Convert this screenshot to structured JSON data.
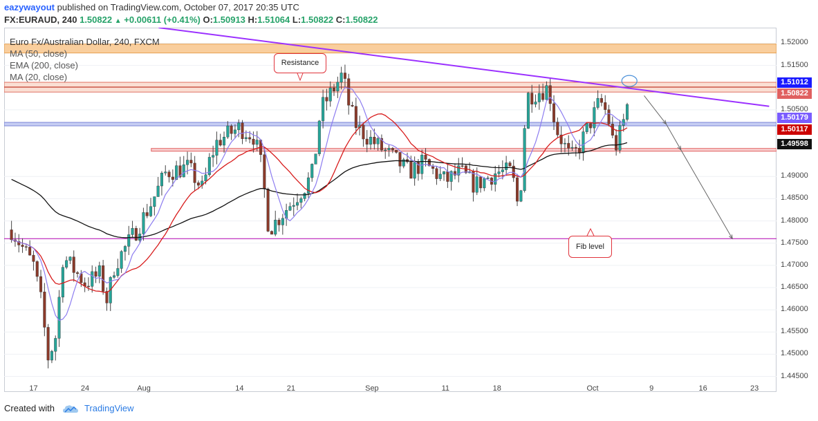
{
  "header": {
    "user": "eazywayout",
    "published": "published on TradingView.com, October 07, 2017 20:35 UTC",
    "symbol": "FX:EURAUD, 240",
    "last": "1.50822",
    "change": "+0.00611 (+0.41%)",
    "o_label": "O:",
    "o_value": "1.50913",
    "h_label": "H:",
    "h_value": "1.51064",
    "l_label": "L:",
    "l_value": "1.50822",
    "c_label": "C:",
    "c_value": "1.50822"
  },
  "legend": {
    "title": "Euro Fx/Australian Dollar, 240, FXCM",
    "ma50": "MA (50, close)",
    "ema200": "EMA (200, close)",
    "ma20": "MA (20, close)"
  },
  "annotations": {
    "resistance": "Resistance",
    "fib": "Fib level"
  },
  "price_tags": [
    {
      "value": "1.51012",
      "color": "#1a1aff"
    },
    {
      "value": "1.50822",
      "color": "#e06060"
    },
    {
      "value": "1.50179",
      "color": "#7a5cff"
    },
    {
      "value": "1.50117",
      "color": "#cc0000"
    },
    {
      "value": "1.49598",
      "color": "#111111"
    }
  ],
  "footer": {
    "created": "Created with",
    "brand": "TradingView"
  },
  "colors": {
    "up": "#26a69a",
    "down": "#8b3a2a",
    "ma20": "#8c7cf0",
    "ma50": "#d81c1c",
    "ema200": "#111111",
    "trendline": "#9b30ff",
    "resistance_zone": "#f7b973",
    "fib_line": "#b000b0"
  },
  "chart_data": {
    "type": "candlestick",
    "symbol": "EURAUD",
    "timeframe": "240",
    "ylim": [
      1.4415,
      1.5235
    ],
    "y_ticks": [
      "1.52000",
      "1.51500",
      "1.51012",
      "1.50822",
      "1.50500",
      "1.50179",
      "1.50117",
      "1.49598",
      "1.49000",
      "1.48500",
      "1.48000",
      "1.47500",
      "1.47000",
      "1.46500",
      "1.46000",
      "1.45500",
      "1.45000",
      "1.44500"
    ],
    "x_ticks": [
      "17",
      "24",
      "Aug",
      "14",
      "21",
      "Sep",
      "11",
      "18",
      "Oct",
      "9",
      "16",
      "23"
    ],
    "close_path": [
      [
        "2017-07-14",
        1.478
      ],
      [
        "2017-07-17",
        1.47
      ],
      [
        "2017-07-18",
        1.462
      ],
      [
        "2017-07-19",
        1.449
      ],
      [
        "2017-07-20",
        1.454
      ],
      [
        "2017-07-21",
        1.472
      ],
      [
        "2017-07-24",
        1.466
      ],
      [
        "2017-07-26",
        1.468
      ],
      [
        "2017-07-27",
        1.462
      ],
      [
        "2017-07-28",
        1.47
      ],
      [
        "2017-07-31",
        1.478
      ],
      [
        "2017-08-02",
        1.484
      ],
      [
        "2017-08-04",
        1.491
      ],
      [
        "2017-08-07",
        1.492
      ],
      [
        "2017-08-09",
        1.487
      ],
      [
        "2017-08-10",
        1.494
      ],
      [
        "2017-08-11",
        1.498
      ],
      [
        "2017-08-14",
        1.501
      ],
      [
        "2017-08-16",
        1.499
      ],
      [
        "2017-08-17",
        1.492
      ],
      [
        "2017-08-18",
        1.478
      ],
      [
        "2017-08-21",
        1.484
      ],
      [
        "2017-08-23",
        1.488
      ],
      [
        "2017-08-24",
        1.491
      ],
      [
        "2017-08-25",
        1.505
      ],
      [
        "2017-08-28",
        1.513
      ],
      [
        "2017-08-29",
        1.505
      ],
      [
        "2017-08-30",
        1.501
      ],
      [
        "2017-09-01",
        1.498
      ],
      [
        "2017-09-04",
        1.494
      ],
      [
        "2017-09-06",
        1.491
      ],
      [
        "2017-09-08",
        1.493
      ],
      [
        "2017-09-11",
        1.489
      ],
      [
        "2017-09-13",
        1.491
      ],
      [
        "2017-09-15",
        1.488
      ],
      [
        "2017-09-18",
        1.491
      ],
      [
        "2017-09-20",
        1.491
      ],
      [
        "2017-09-21",
        1.482
      ],
      [
        "2017-09-22",
        1.508
      ],
      [
        "2017-09-25",
        1.51
      ],
      [
        "2017-09-26",
        1.501
      ],
      [
        "2017-09-28",
        1.494
      ],
      [
        "2017-09-29",
        1.496
      ],
      [
        "2017-10-02",
        1.507
      ],
      [
        "2017-10-03",
        1.504
      ],
      [
        "2017-10-04",
        1.496
      ],
      [
        "2017-10-05",
        1.501
      ],
      [
        "2017-10-06",
        1.508
      ]
    ],
    "series": [
      {
        "name": "MA (20, close)"
      },
      {
        "name": "MA (50, close)"
      },
      {
        "name": "EMA (200, close)"
      }
    ],
    "levels": {
      "resistance_zone": [
        1.5178,
        1.5198
      ],
      "resistance_line": 1.51012,
      "resistance_band": [
        1.509,
        1.5112
      ],
      "support_1": 1.50179,
      "support_2": 1.496,
      "fib_level": 1.476
    },
    "trendline": {
      "from": [
        "2017-08-03",
        1.5235
      ],
      "to": [
        "2017-10-25",
        1.5058
      ]
    },
    "forecast": [
      [
        "2017-10-08",
        1.5082
      ],
      [
        "2017-10-11",
        1.5018
      ],
      [
        "2017-10-13",
        1.496
      ],
      [
        "2017-10-20",
        1.476
      ]
    ]
  }
}
